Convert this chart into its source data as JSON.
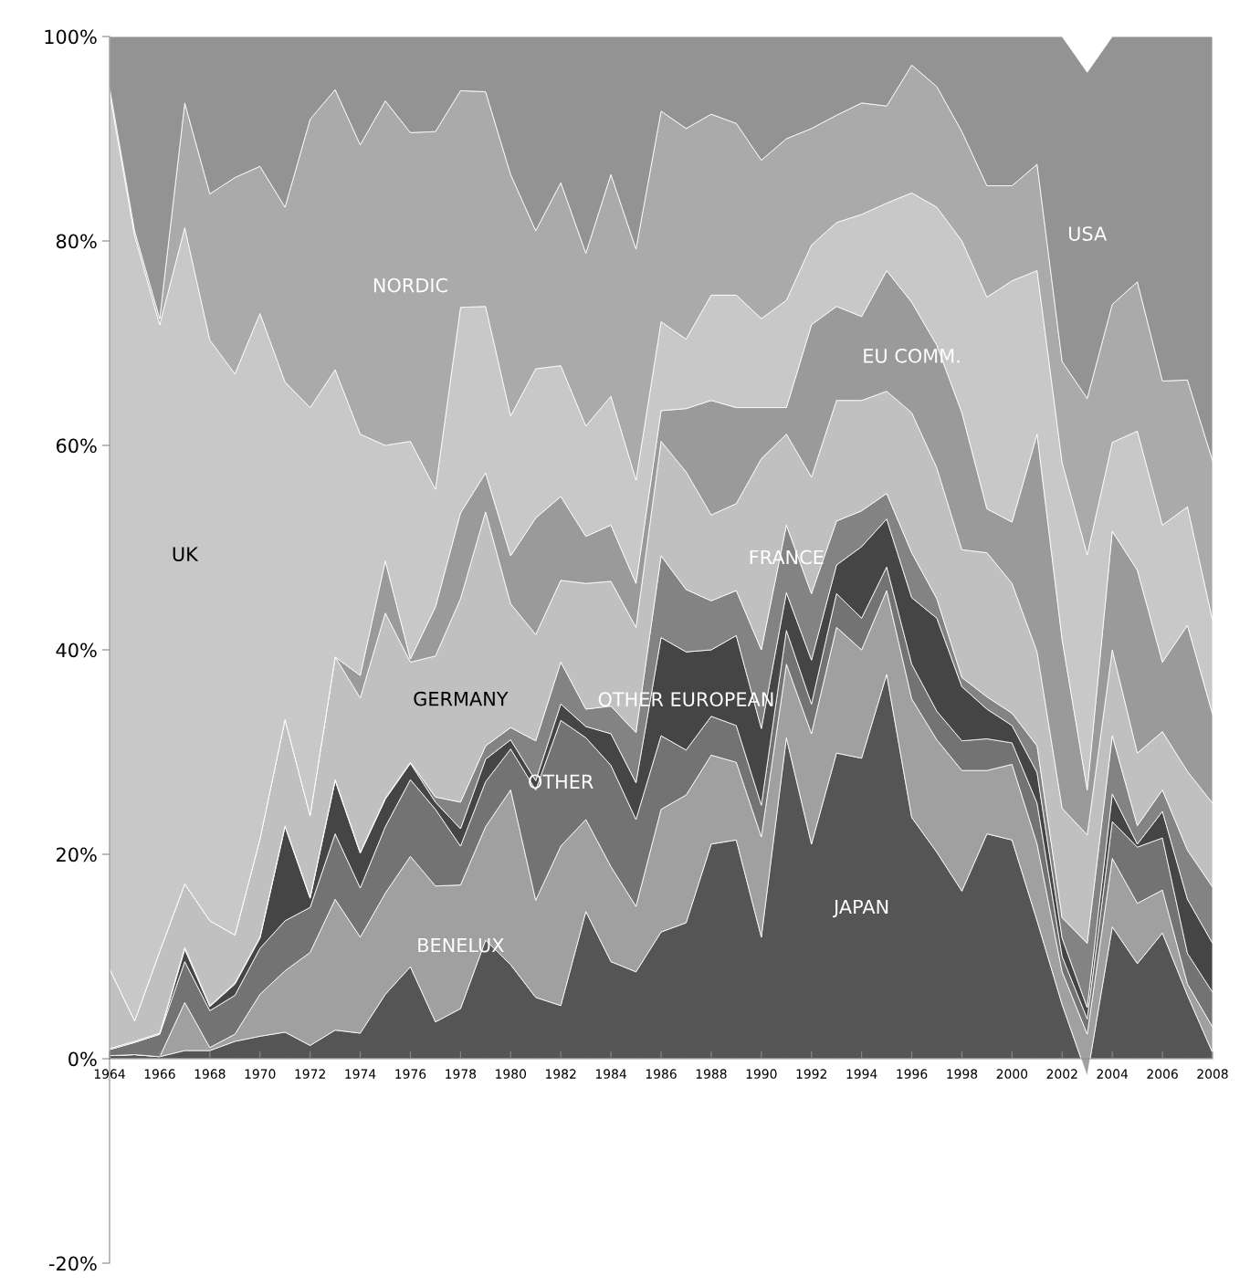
{
  "chart_data": {
    "type": "area",
    "stacked": true,
    "x": [
      1964,
      1965,
      1966,
      1967,
      1968,
      1969,
      1970,
      1971,
      1972,
      1973,
      1974,
      1975,
      1976,
      1977,
      1978,
      1979,
      1980,
      1981,
      1982,
      1983,
      1984,
      1985,
      1986,
      1987,
      1988,
      1989,
      1990,
      1991,
      1992,
      1993,
      1994,
      1995,
      1996,
      1997,
      1998,
      1999,
      2000,
      2001,
      2002,
      2003,
      2004,
      2005,
      2006,
      2007,
      2008
    ],
    "series": [
      {
        "name": "JAPAN",
        "color": "#555555",
        "values": [
          0.3,
          0.4,
          0.2,
          0.8,
          0.8,
          1.7,
          2.2,
          2.6,
          1.3,
          2.8,
          2.5,
          6.3,
          9.0,
          3.6,
          4.9,
          11.6,
          9.2,
          6.0,
          5.2,
          14.4,
          9.5,
          8.5,
          12.4,
          13.3,
          21.0,
          21.4,
          11.9,
          31.4,
          21.0,
          29.9,
          29.4,
          37.6,
          23.6,
          20.2,
          16.4,
          22.0,
          21.4,
          13.5,
          5.3,
          -1.7,
          12.9,
          9.3,
          12.3,
          6.2,
          0.6
        ]
      },
      {
        "name": "BENELUX",
        "color": "#a0a0a0",
        "values": [
          0.0,
          0.0,
          0.0,
          4.7,
          0.3,
          0.7,
          4.1,
          6.0,
          9.1,
          12.8,
          9.4,
          9.9,
          10.8,
          13.3,
          12.1,
          11.1,
          17.1,
          9.5,
          15.6,
          9.0,
          9.3,
          6.4,
          12.0,
          12.5,
          8.7,
          7.6,
          9.8,
          7.2,
          10.8,
          12.3,
          10.6,
          8.2,
          11.6,
          11.0,
          11.8,
          6.2,
          7.4,
          7.5,
          3.2,
          4.1,
          6.7,
          5.9,
          4.2,
          1.1,
          2.5
        ]
      },
      {
        "name": "OTHER",
        "color": "#737373",
        "values": [
          0.6,
          1.2,
          2.2,
          4.0,
          3.6,
          3.8,
          4.5,
          4.9,
          4.4,
          6.4,
          4.8,
          6.5,
          7.5,
          7.5,
          3.8,
          4.4,
          4.0,
          10.8,
          12.3,
          8.0,
          9.9,
          8.5,
          7.2,
          4.4,
          3.8,
          3.6,
          3.1,
          3.3,
          2.9,
          3.3,
          3.1,
          2.3,
          3.4,
          2.8,
          2.9,
          3.1,
          2.1,
          4.0,
          1.5,
          1.5,
          3.6,
          5.5,
          5.1,
          3.0,
          3.4
        ]
      },
      {
        "name": "OTHER EUROPEAN",
        "color": "#454545",
        "values": [
          0.0,
          0.0,
          0.0,
          1.2,
          0.4,
          1.1,
          1.0,
          9.2,
          0.9,
          5.2,
          3.4,
          2.7,
          1.6,
          0.7,
          1.7,
          2.2,
          0.9,
          0.9,
          1.6,
          1.1,
          3.1,
          3.6,
          9.6,
          9.6,
          6.5,
          8.8,
          7.5,
          3.7,
          4.3,
          2.8,
          7.0,
          4.7,
          6.5,
          9.1,
          5.3,
          2.9,
          1.7,
          3.0,
          1.8,
          1.1,
          2.7,
          0.3,
          2.6,
          5.3,
          4.8
        ]
      },
      {
        "name": "FRANCE",
        "color": "#838383",
        "values": [
          0.1,
          0.1,
          0.1,
          0.2,
          0.1,
          0.1,
          0.1,
          0.1,
          0.1,
          0.1,
          0.1,
          0.1,
          0.1,
          0.5,
          2.6,
          1.3,
          1.2,
          3.9,
          4.1,
          1.7,
          2.7,
          4.9,
          8.0,
          6.1,
          4.8,
          4.4,
          7.7,
          6.6,
          6.5,
          4.3,
          3.5,
          2.5,
          4.4,
          1.9,
          0.9,
          1.2,
          1.2,
          2.6,
          2.0,
          6.3,
          5.7,
          1.8,
          2.1,
          4.8,
          5.5
        ]
      },
      {
        "name": "GERMANY",
        "color": "#c0c0c0",
        "values": [
          7.8,
          2.0,
          8.0,
          6.2,
          8.3,
          4.7,
          9.6,
          10.4,
          8.0,
          12.0,
          15.1,
          18.1,
          9.8,
          13.8,
          19.9,
          22.9,
          12.1,
          10.4,
          8.0,
          12.3,
          12.2,
          10.3,
          11.2,
          11.5,
          8.4,
          8.5,
          18.7,
          8.9,
          11.4,
          11.8,
          10.8,
          10.0,
          13.7,
          12.8,
          12.5,
          14.1,
          12.7,
          9.2,
          10.7,
          10.6,
          8.4,
          7.1,
          5.7,
          7.7,
          8.2
        ]
      },
      {
        "name": "EU COMM.",
        "color": "#9a9a9a",
        "values": [
          0.0,
          0.0,
          0.0,
          0.0,
          0.0,
          0.0,
          0.0,
          0.0,
          0.0,
          0.0,
          2.2,
          5.1,
          0.3,
          4.8,
          8.4,
          3.8,
          4.7,
          11.4,
          8.2,
          4.6,
          5.5,
          4.3,
          3.0,
          6.2,
          11.2,
          9.4,
          5.0,
          2.6,
          14.9,
          9.2,
          8.2,
          11.8,
          10.8,
          12.0,
          13.4,
          4.3,
          6.0,
          21.3,
          16.5,
          4.4,
          11.6,
          17.9,
          6.8,
          14.3,
          8.7
        ]
      },
      {
        "name": "UK",
        "color": "#c8c8c8",
        "values": [
          85.7,
          76.8,
          61.3,
          64.2,
          56.8,
          54.9,
          51.4,
          33.0,
          39.9,
          28.1,
          23.6,
          11.3,
          21.3,
          11.5,
          20.1,
          16.3,
          13.7,
          14.6,
          12.8,
          10.8,
          12.6,
          10.1,
          8.7,
          6.8,
          10.3,
          11.0,
          8.7,
          10.5,
          7.8,
          8.2,
          10.0,
          6.6,
          10.7,
          13.5,
          16.8,
          20.7,
          23.6,
          16.0,
          17.3,
          23.0,
          8.7,
          13.6,
          13.4,
          11.6,
          9.2
        ]
      },
      {
        "name": "NORDIC",
        "color": "#aaaaaa",
        "values": [
          0.5,
          0.5,
          0.6,
          12.2,
          14.3,
          19.2,
          14.4,
          17.1,
          28.2,
          27.4,
          28.3,
          33.7,
          30.2,
          35.0,
          21.2,
          21.0,
          23.6,
          13.5,
          17.9,
          16.9,
          21.7,
          22.6,
          20.6,
          20.6,
          17.7,
          16.8,
          15.5,
          15.8,
          11.4,
          10.5,
          10.9,
          9.5,
          12.5,
          11.8,
          10.7,
          10.9,
          9.3,
          10.4,
          9.9,
          15.3,
          13.5,
          14.6,
          14.1,
          12.4,
          15.6
        ]
      },
      {
        "name": "USA",
        "color": "#939393",
        "values": [
          5.0,
          19.0,
          27.6,
          6.5,
          15.4,
          13.8,
          12.7,
          16.7,
          8.1,
          5.2,
          10.6,
          6.3,
          9.4,
          9.3,
          5.3,
          5.4,
          13.5,
          19.0,
          14.3,
          21.2,
          13.5,
          20.8,
          7.3,
          9.0,
          7.6,
          8.5,
          12.1,
          10.0,
          9.0,
          7.7,
          6.5,
          6.8,
          2.8,
          4.9,
          9.3,
          14.6,
          14.6,
          12.5,
          31.8,
          31.9,
          26.2,
          24.0,
          33.7,
          33.6,
          41.5
        ]
      }
    ],
    "xlim": [
      1964,
      2008
    ],
    "xticks": [
      1964,
      1966,
      1968,
      1970,
      1972,
      1974,
      1976,
      1978,
      1980,
      1982,
      1984,
      1986,
      1988,
      1990,
      1992,
      1994,
      1996,
      1998,
      2000,
      2002,
      2004,
      2006,
      2008
    ],
    "ylim": [
      -20,
      100
    ],
    "yticks": [
      {
        "value": -20,
        "label": "-20%"
      },
      {
        "value": 0,
        "label": "0%"
      },
      {
        "value": 20,
        "label": "20%"
      },
      {
        "value": 40,
        "label": "40%"
      },
      {
        "value": 60,
        "label": "60%"
      },
      {
        "value": 80,
        "label": "80%"
      },
      {
        "value": 100,
        "label": "100%"
      }
    ],
    "grid": false,
    "legend": false
  }
}
